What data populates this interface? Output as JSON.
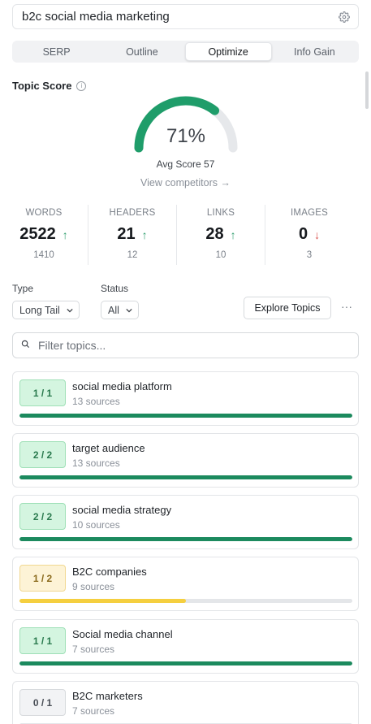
{
  "keyword": {
    "value": "b2c social media marketing",
    "icon": "gear-icon"
  },
  "tabs": [
    {
      "label": "SERP",
      "active": false
    },
    {
      "label": "Outline",
      "active": false
    },
    {
      "label": "Optimize",
      "active": true
    },
    {
      "label": "Info Gain",
      "active": false
    }
  ],
  "topic_score": {
    "title": "Topic Score",
    "value": "71%",
    "percent": 71,
    "avg_label": "Avg Score 57",
    "view_competitors": "View competitors →",
    "gauge_color": "#1f9d6a",
    "gauge_track": "#e6e8eb"
  },
  "stats": [
    {
      "label": "WORDS",
      "value": "2522",
      "trend": "↑",
      "direction": "up",
      "target": "1410"
    },
    {
      "label": "HEADERS",
      "value": "21",
      "trend": "↑",
      "direction": "up",
      "target": "12"
    },
    {
      "label": "LINKS",
      "value": "28",
      "trend": "↑",
      "direction": "up",
      "target": "10"
    },
    {
      "label": "IMAGES",
      "value": "0",
      "trend": "↓",
      "direction": "down",
      "target": "3"
    }
  ],
  "filters": {
    "type_label": "Type",
    "type_value": "Long Tail",
    "status_label": "Status",
    "status_value": "All",
    "explore_button": "Explore Topics",
    "more": "···"
  },
  "search": {
    "placeholder": "Filter topics...",
    "value": ""
  },
  "topics": [
    {
      "name": "social media platform",
      "sources": "13 sources",
      "score": "1 / 1",
      "status": "green",
      "progress": 1.0
    },
    {
      "name": "target audience",
      "sources": "13 sources",
      "score": "2 / 2",
      "status": "green",
      "progress": 1.0
    },
    {
      "name": "social media strategy",
      "sources": "10 sources",
      "score": "2 / 2",
      "status": "green",
      "progress": 1.0
    },
    {
      "name": "B2C companies",
      "sources": "9 sources",
      "score": "1 / 2",
      "status": "yellow",
      "progress": 0.5
    },
    {
      "name": "Social media channel",
      "sources": "7 sources",
      "score": "1 / 1",
      "status": "green",
      "progress": 1.0
    },
    {
      "name": "B2C marketers",
      "sources": "7 sources",
      "score": "0 / 1",
      "status": "gray",
      "progress": 0.0
    }
  ],
  "colors": {
    "green": "#1c8a5e",
    "yellow": "#f5cf3f",
    "gray": "#c8cbcf"
  }
}
